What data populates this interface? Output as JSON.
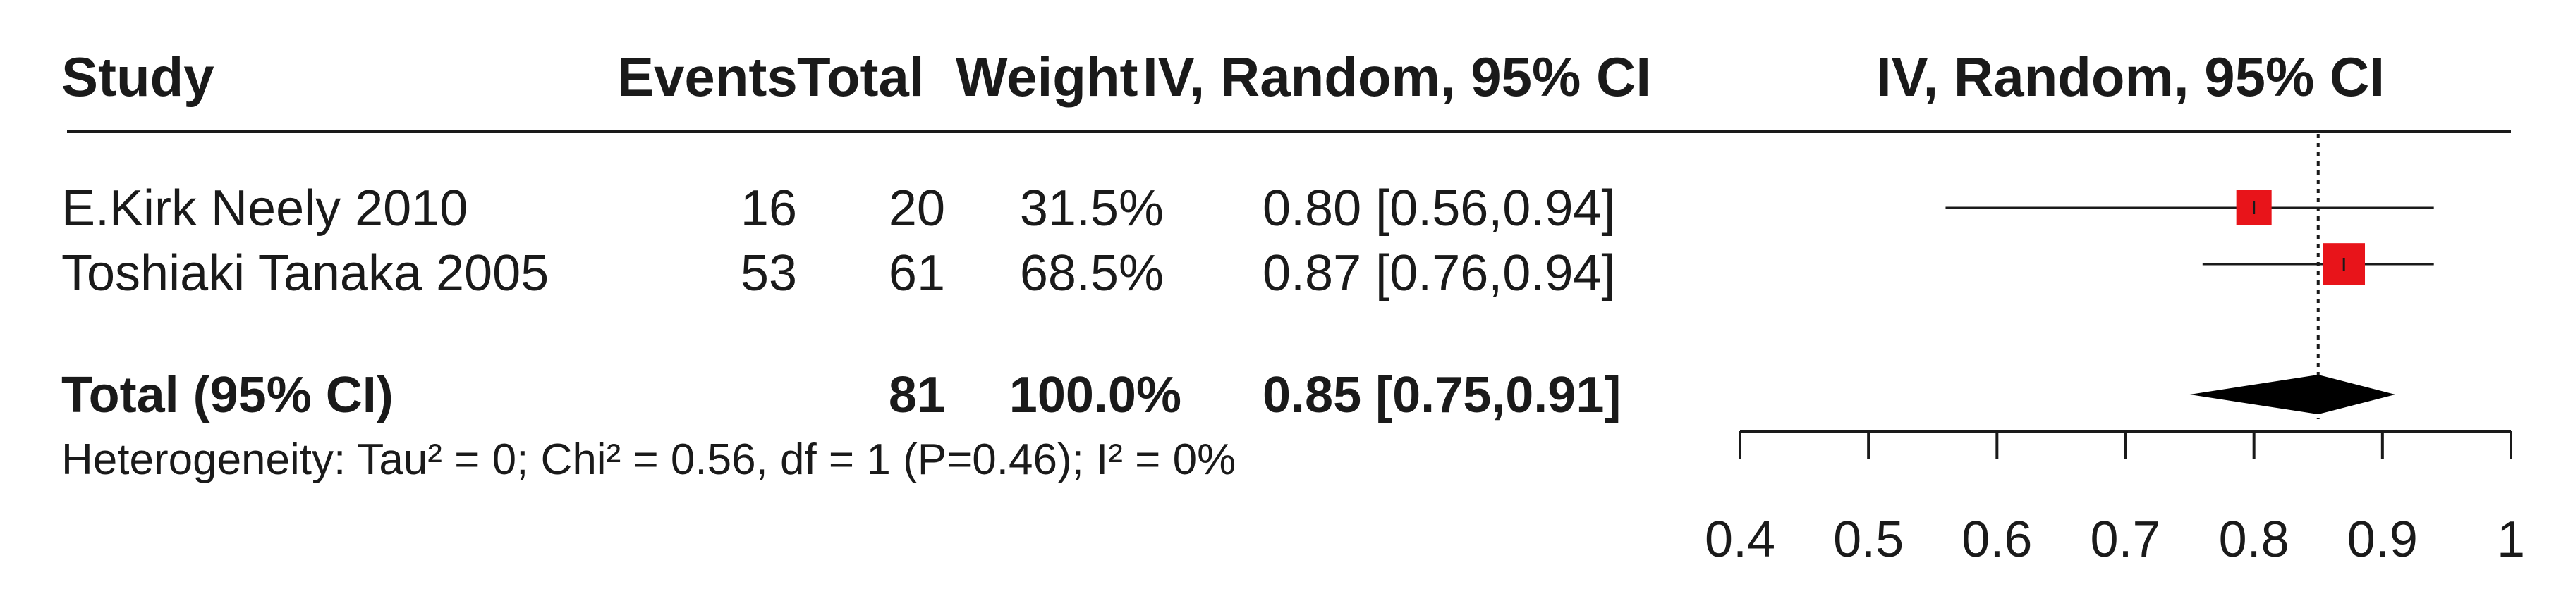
{
  "header": {
    "study": "Study",
    "events": "Events",
    "total": "Total",
    "weight": "Weight",
    "effect_ci": "IV, Random, 95% CI",
    "plot_title": "IV, Random, 95% CI"
  },
  "studies": [
    {
      "name": "E.Kirk Neely 2010",
      "events": "16",
      "total": "20",
      "weight": "31.5%",
      "ci_text": "0.80 [0.56,0.94]"
    },
    {
      "name": "Toshiaki Tanaka 2005",
      "events": "53",
      "total": "61",
      "weight": "68.5%",
      "ci_text": "0.87 [0.76,0.94]"
    }
  ],
  "pooled": {
    "label": "Total (95% CI)",
    "total": "81",
    "weight": "100.0%",
    "ci_text": "0.85 [0.75,0.91]"
  },
  "heterogeneity": "Heterogeneity: Tau² = 0; Chi² = 0.56, df = 1 (P=0.46); I² = 0%",
  "colors": {
    "marker": "#e8141a",
    "line": "#1a1a1a",
    "diamond": "#000000"
  },
  "chart_data": {
    "type": "forest",
    "xlim": [
      0.4,
      1.0
    ],
    "xticks": [
      "0.4",
      "0.5",
      "0.6",
      "0.7",
      "0.8",
      "0.9",
      "1"
    ],
    "reference_line": 0.85,
    "studies": [
      {
        "name": "E.Kirk Neely 2010",
        "estimate": 0.8,
        "lower": 0.56,
        "upper": 0.94,
        "weight": 31.5
      },
      {
        "name": "Toshiaki Tanaka 2005",
        "estimate": 0.87,
        "lower": 0.76,
        "upper": 0.94,
        "weight": 68.5
      }
    ],
    "pooled": {
      "estimate": 0.85,
      "lower": 0.75,
      "upper": 0.91
    }
  }
}
